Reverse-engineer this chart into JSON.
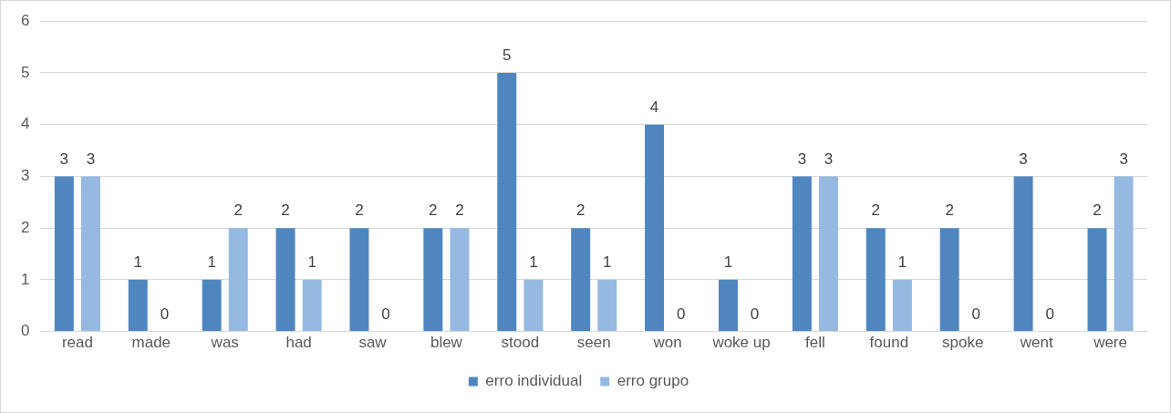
{
  "chart_data": {
    "type": "bar",
    "categories": [
      "read",
      "made",
      "was",
      "had",
      "saw",
      "blew",
      "stood",
      "seen",
      "won",
      "woke up",
      "fell",
      "found",
      "spoke",
      "went",
      "were"
    ],
    "series": [
      {
        "name": "erro individual",
        "color": "#4f86c0",
        "values": [
          3,
          1,
          1,
          2,
          2,
          2,
          5,
          2,
          4,
          1,
          3,
          2,
          2,
          3,
          2
        ]
      },
      {
        "name": "erro grupo",
        "color": "#96b9e1",
        "values": [
          3,
          0,
          2,
          1,
          0,
          2,
          1,
          1,
          0,
          0,
          3,
          1,
          0,
          0,
          3
        ]
      }
    ],
    "ylim": [
      0,
      6
    ],
    "yticks": [
      0,
      1,
      2,
      3,
      4,
      5,
      6
    ],
    "grid": "y",
    "legend": "bottom",
    "data_labels": true
  }
}
